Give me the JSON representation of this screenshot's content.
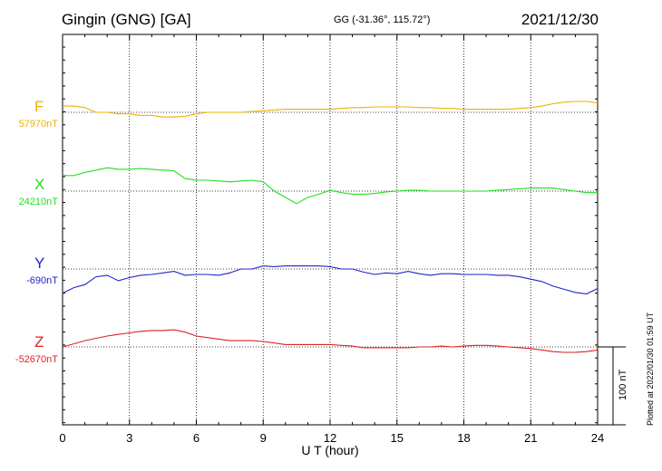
{
  "header": {
    "station": "Gingin (GNG)  [GA]",
    "coords": "GG (-31.36°, 115.72°)",
    "date": "2021/12/30"
  },
  "footer": {
    "plotted": "Plotted at 2022/01/30 01:59 UT",
    "scale_label": "100 nT"
  },
  "chart_data": {
    "type": "line",
    "xlabel": "U T (hour)",
    "xlim": [
      0,
      24
    ],
    "xticks": [
      0,
      3,
      6,
      9,
      12,
      15,
      18,
      21,
      24
    ],
    "grid": true,
    "scale_bar_nT": 100,
    "series": [
      {
        "name": "F",
        "baseline_label": "57970nT",
        "baseline": 57970,
        "color": "#f0b000",
        "x": [
          0,
          0.5,
          1,
          1.5,
          2,
          2.5,
          3,
          3.5,
          4,
          4.5,
          5,
          5.5,
          6,
          6.5,
          7,
          7.5,
          8,
          8.5,
          9,
          9.5,
          10,
          10.5,
          11,
          11.5,
          12,
          12.5,
          13,
          13.5,
          14,
          14.5,
          15,
          15.5,
          16,
          16.5,
          17,
          17.5,
          18,
          18.5,
          19,
          19.5,
          20,
          20.5,
          21,
          21.5,
          22,
          22.5,
          23,
          23.5,
          24
        ],
        "y": [
          57978,
          57978,
          57976,
          57970,
          57970,
          57968,
          57968,
          57966,
          57966,
          57964,
          57964,
          57965,
          57968,
          57970,
          57970,
          57970,
          57970,
          57971,
          57972,
          57973,
          57974,
          57974,
          57974,
          57974,
          57974,
          57975,
          57976,
          57976,
          57977,
          57977,
          57977,
          57977,
          57976,
          57976,
          57975,
          57975,
          57974,
          57974,
          57974,
          57974,
          57974,
          57975,
          57976,
          57978,
          57981,
          57983,
          57984,
          57984,
          57982
        ]
      },
      {
        "name": "X",
        "baseline_label": "24210nT",
        "baseline": 24210,
        "color": "#22dd22",
        "x": [
          0,
          0.5,
          1,
          1.5,
          2,
          2.5,
          3,
          3.5,
          4,
          4.5,
          5,
          5.5,
          6,
          6.5,
          7,
          7.5,
          8,
          8.5,
          9,
          9.5,
          10,
          10.5,
          11,
          11.5,
          12,
          12.5,
          13,
          13.5,
          14,
          14.5,
          15,
          15.5,
          16,
          16.5,
          17,
          17.5,
          18,
          18.5,
          19,
          19.5,
          20,
          20.5,
          21,
          21.5,
          22,
          22.5,
          23,
          23.5,
          24
        ],
        "y": [
          24230,
          24230,
          24234,
          24237,
          24240,
          24238,
          24238,
          24239,
          24238,
          24237,
          24236,
          24226,
          24224,
          24224,
          24223,
          24222,
          24223,
          24224,
          24222,
          24210,
          24202,
          24194,
          24202,
          24206,
          24211,
          24208,
          24206,
          24206,
          24207,
          24209,
          24210,
          24211,
          24211,
          24210,
          24210,
          24210,
          24210,
          24210,
          24210,
          24211,
          24212,
          24213,
          24214,
          24214,
          24214,
          24212,
          24210,
          24208,
          24208
        ]
      },
      {
        "name": "Y",
        "baseline_label": "-690nT",
        "baseline": -690,
        "color": "#2222cc",
        "x": [
          0,
          0.5,
          1,
          1.5,
          2,
          2.5,
          3,
          3.5,
          4,
          4.5,
          5,
          5.5,
          6,
          6.5,
          7,
          7.5,
          8,
          8.5,
          9,
          9.5,
          10,
          10.5,
          11,
          11.5,
          12,
          12.5,
          13,
          13.5,
          14,
          14.5,
          15,
          15.5,
          16,
          16.5,
          17,
          17.5,
          18,
          18.5,
          19,
          19.5,
          20,
          20.5,
          21,
          21.5,
          22,
          22.5,
          23,
          23.5,
          24
        ],
        "y": [
          -721,
          -714,
          -710,
          -700,
          -698,
          -705,
          -701,
          -698,
          -697,
          -695,
          -693,
          -698,
          -697,
          -697,
          -698,
          -695,
          -690,
          -690,
          -686,
          -687,
          -686,
          -686,
          -686,
          -686,
          -687,
          -690,
          -690,
          -694,
          -697,
          -695,
          -696,
          -693,
          -696,
          -698,
          -696,
          -696,
          -697,
          -697,
          -697,
          -698,
          -698,
          -700,
          -703,
          -706,
          -712,
          -716,
          -720,
          -722,
          -715
        ]
      },
      {
        "name": "Z",
        "baseline_label": "-52670nT",
        "baseline": -52670,
        "color": "#dd2222",
        "x": [
          0,
          0.5,
          1,
          1.5,
          2,
          2.5,
          3,
          3.5,
          4,
          4.5,
          5,
          5.5,
          6,
          6.5,
          7,
          7.5,
          8,
          8.5,
          9,
          9.5,
          10,
          10.5,
          11,
          11.5,
          12,
          12.5,
          13,
          13.5,
          14,
          14.5,
          15,
          15.5,
          16,
          16.5,
          17,
          17.5,
          18,
          18.5,
          19,
          19.5,
          20,
          20.5,
          21,
          21.5,
          22,
          22.5,
          23,
          23.5,
          24
        ],
        "y": [
          -52670,
          -52666,
          -52662,
          -52659,
          -52656,
          -52654,
          -52652,
          -52650,
          -52649,
          -52649,
          -52648,
          -52651,
          -52656,
          -52658,
          -52660,
          -52662,
          -52662,
          -52662,
          -52663,
          -52665,
          -52667,
          -52667,
          -52667,
          -52667,
          -52667,
          -52668,
          -52669,
          -52671,
          -52671,
          -52671,
          -52671,
          -52671,
          -52670,
          -52670,
          -52669,
          -52670,
          -52669,
          -52668,
          -52668,
          -52669,
          -52670,
          -52671,
          -52672,
          -52674,
          -52676,
          -52677,
          -52677,
          -52676,
          -52674
        ]
      }
    ]
  }
}
